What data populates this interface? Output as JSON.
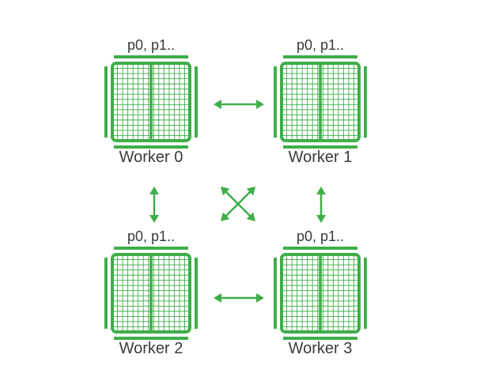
{
  "accent_color": "#3fae49",
  "workers": [
    {
      "name": "Worker 0",
      "params": "p0, p1.."
    },
    {
      "name": "Worker 1",
      "params": "p0, p1.."
    },
    {
      "name": "Worker 2",
      "params": "p0, p1.."
    },
    {
      "name": "Worker 3",
      "params": "p0, p1.."
    }
  ],
  "connections": [
    {
      "from": "Worker 0",
      "to": "Worker 1"
    },
    {
      "from": "Worker 2",
      "to": "Worker 3"
    },
    {
      "from": "Worker 0",
      "to": "Worker 2"
    },
    {
      "from": "Worker 1",
      "to": "Worker 3"
    },
    {
      "from": "Worker 0",
      "to": "Worker 3"
    },
    {
      "from": "Worker 1",
      "to": "Worker 2"
    }
  ]
}
